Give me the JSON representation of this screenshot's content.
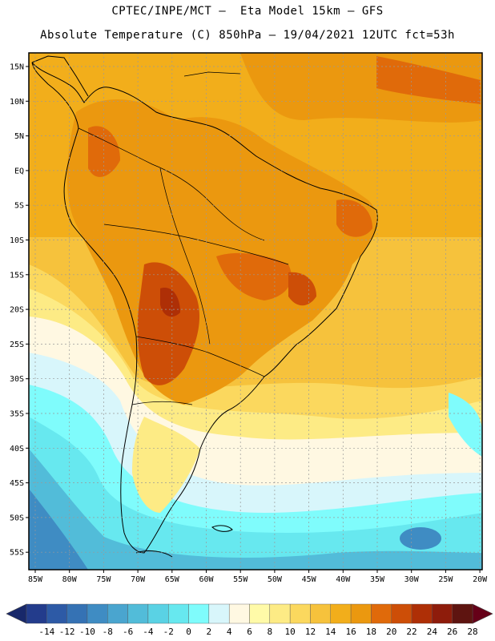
{
  "header": {
    "line1": "CPTEC/INPE/MCT –  Eta Model 15km – GFS",
    "line2": "Absolute Temperature (C) 850hPa – 19/04/2021 12UTC fct=53h"
  },
  "map": {
    "lat_labels": [
      "15N",
      "10N",
      "5N",
      "EQ",
      "5S",
      "10S",
      "15S",
      "20S",
      "25S",
      "30S",
      "35S",
      "40S",
      "45S",
      "50S",
      "55S"
    ],
    "lon_labels": [
      "85W",
      "80W",
      "75W",
      "70W",
      "65W",
      "60W",
      "55W",
      "50W",
      "45W",
      "40W",
      "35W",
      "30W",
      "25W",
      "20W"
    ]
  },
  "colorbar": {
    "ticks": [
      "-14",
      "-12",
      "-10",
      "-8",
      "-6",
      "-4",
      "-2",
      "0",
      "2",
      "4",
      "6",
      "8",
      "10",
      "12",
      "14",
      "16",
      "18",
      "20",
      "22",
      "24",
      "26",
      "28"
    ],
    "colors": [
      "#233c8c",
      "#2d5aa6",
      "#3572b4",
      "#3f8cc3",
      "#4aa5cf",
      "#52bcd9",
      "#5ad2e4",
      "#67e8ef",
      "#7ffcfc",
      "#d8f6fb",
      "#fff8e2",
      "#fffaa8",
      "#fdeb85",
      "#fbd85e",
      "#f6c23c",
      "#f2ae1b",
      "#eb980f",
      "#e06a0a",
      "#cd4e07",
      "#ae2f06",
      "#8e1c0b",
      "#5e1410"
    ],
    "end_low_color": "#18286a",
    "end_high_color": "#660018"
  }
}
